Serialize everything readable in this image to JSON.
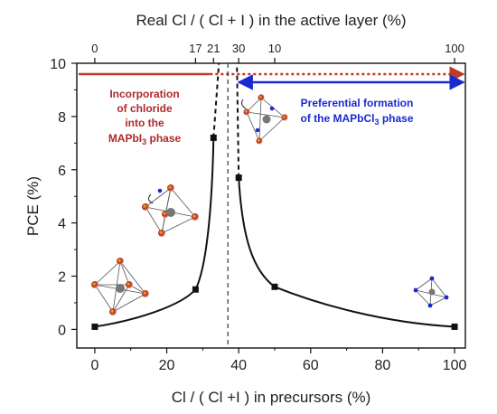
{
  "chart_data": {
    "type": "scatter",
    "title": "",
    "xlabel": "Cl / ( Cl +I ) in precursors (%)",
    "ylabel": "PCE (%)",
    "top_xlabel": "Real Cl / ( Cl + I ) in the active layer (%)",
    "xlim": [
      -5,
      103
    ],
    "ylim": [
      -0.7,
      10
    ],
    "x_ticks": [
      "0",
      "20",
      "40",
      "60",
      "80",
      "100"
    ],
    "y_ticks": [
      "0",
      "2",
      "4",
      "6",
      "8",
      "10"
    ],
    "top_ticks": [
      {
        "label": "0",
        "x": 0
      },
      {
        "label": "17",
        "x": 28
      },
      {
        "label": "21",
        "x": 33
      },
      {
        "label": "30",
        "x": 40
      },
      {
        "label": "10",
        "x": 50
      },
      {
        "label": "100",
        "x": 100
      }
    ],
    "points": [
      {
        "x": 0,
        "y": 0.1
      },
      {
        "x": 28,
        "y": 1.5
      },
      {
        "x": 33,
        "y": 7.2
      },
      {
        "x": 40,
        "y": 5.7
      },
      {
        "x": 50,
        "y": 1.6
      },
      {
        "x": 100,
        "y": 0.1
      }
    ],
    "divider_x": 37,
    "annotations": {
      "left_lines": [
        "Incorporation",
        "of chloride",
        "into the"
      ],
      "left_phase_prefix": "MAPbI",
      "left_phase_sub": "3",
      "left_phase_suffix": " phase",
      "right_line1": "Preferential formation",
      "right_phase_prefix": "of the MAPbCl",
      "right_phase_sub": "3",
      "right_phase_suffix": " phase"
    },
    "colors": {
      "red_arrow": "#c0392b",
      "blue_arrow": "#1a2ad1",
      "red_text": "#b0282a",
      "blue_text": "#1a2ad1",
      "curve": "#111111",
      "marker": "#111111"
    },
    "grid": false,
    "legend": "none"
  }
}
